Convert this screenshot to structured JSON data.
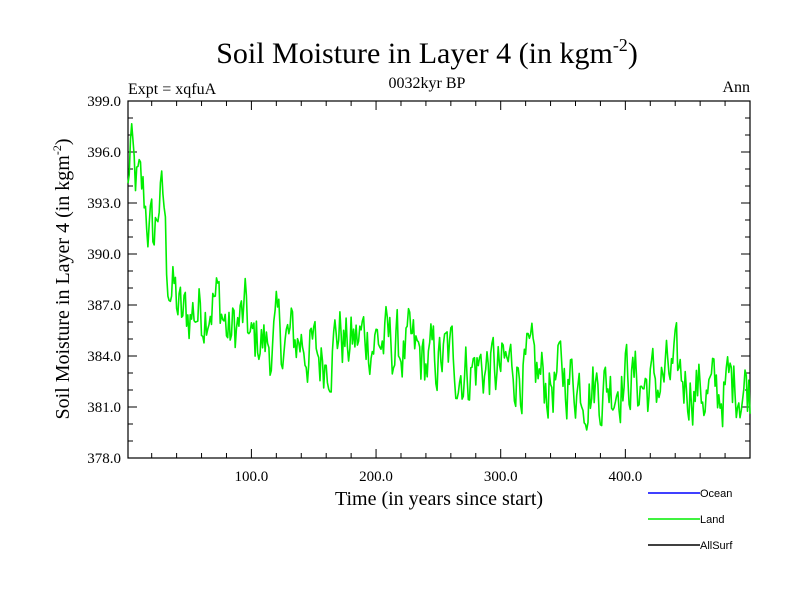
{
  "chart_data": {
    "type": "line",
    "title": "Soil Moisture in Layer 4 (in kgm",
    "title_exponent": "-2",
    "title_close": ")",
    "subtitle": "0032kyr BP",
    "expt_label": "Expt = xqfuA",
    "season_label": "Ann",
    "xlabel": "Time (in years since start)",
    "ylabel": "Soil Moisture in Layer 4 (in kgm",
    "ylabel_exponent": "-2",
    "ylabel_close": ")",
    "xlim": [
      1,
      500
    ],
    "ylim": [
      378.0,
      399.0
    ],
    "xticks": [
      100,
      200,
      300,
      400
    ],
    "xtick_labels": [
      "100.0",
      "200.0",
      "300.0",
      "400.0"
    ],
    "yticks": [
      378,
      381,
      384,
      387,
      390,
      393,
      396,
      399
    ],
    "ytick_labels": [
      "378.0",
      "381.0",
      "384.0",
      "387.0",
      "390.0",
      "393.0",
      "396.0",
      "399.0"
    ],
    "colors": {
      "ocean": "#0000ff",
      "land": "#00ee00",
      "allsurf": "#000000",
      "axis": "#000000"
    },
    "legend": [
      {
        "name": "Ocean",
        "color": "#0000ff"
      },
      {
        "name": "Land",
        "color": "#00ee00"
      },
      {
        "name": "AllSurf",
        "color": "#000000"
      }
    ],
    "legend_position": "below-right",
    "series": [
      {
        "name": "Land",
        "color": "#00ee00",
        "keyframes": [
          [
            1,
            393.6
          ],
          [
            3,
            396.5
          ],
          [
            6,
            394.2
          ],
          [
            10,
            393.6
          ],
          [
            14,
            393.1
          ],
          [
            18,
            391.6
          ],
          [
            22,
            390.8
          ],
          [
            26,
            393.4
          ],
          [
            30,
            392.6
          ],
          [
            32,
            389.3
          ],
          [
            36,
            388.2
          ],
          [
            40,
            387.1
          ],
          [
            44,
            386.0
          ],
          [
            50,
            386.5
          ],
          [
            56,
            386.8
          ],
          [
            60,
            386.7
          ],
          [
            66,
            387.7
          ],
          [
            70,
            387.5
          ],
          [
            76,
            386.8
          ],
          [
            82,
            385.1
          ],
          [
            88,
            385.7
          ],
          [
            96,
            386.3
          ],
          [
            100,
            384.3
          ],
          [
            106,
            385.2
          ],
          [
            112,
            384.5
          ],
          [
            120,
            385.1
          ],
          [
            130,
            384.8
          ],
          [
            140,
            385.0
          ],
          [
            150,
            384.1
          ],
          [
            156,
            383.8
          ],
          [
            162,
            384.4
          ],
          [
            170,
            385.6
          ],
          [
            176,
            384.6
          ],
          [
            184,
            384.8
          ],
          [
            192,
            385.2
          ],
          [
            200,
            385.0
          ],
          [
            210,
            384.6
          ],
          [
            220,
            384.4
          ],
          [
            230,
            384.0
          ],
          [
            240,
            383.5
          ],
          [
            250,
            383.7
          ],
          [
            260,
            383.9
          ],
          [
            270,
            383.3
          ],
          [
            280,
            383.4
          ],
          [
            290,
            383.3
          ],
          [
            300,
            382.9
          ],
          [
            310,
            383.5
          ],
          [
            320,
            383.1
          ],
          [
            330,
            382.7
          ],
          [
            340,
            382.3
          ],
          [
            350,
            382.8
          ],
          [
            360,
            382.6
          ],
          [
            370,
            382.4
          ],
          [
            380,
            382.2
          ],
          [
            390,
            382.5
          ],
          [
            400,
            383.0
          ],
          [
            410,
            382.4
          ],
          [
            420,
            382.2
          ],
          [
            430,
            382.6
          ],
          [
            440,
            382.8
          ],
          [
            450,
            382.6
          ],
          [
            460,
            382.1
          ],
          [
            470,
            381.6
          ],
          [
            480,
            382.0
          ],
          [
            490,
            382.6
          ],
          [
            500,
            382.1
          ]
        ],
        "noise_amplitude": 1.8
      }
    ]
  }
}
